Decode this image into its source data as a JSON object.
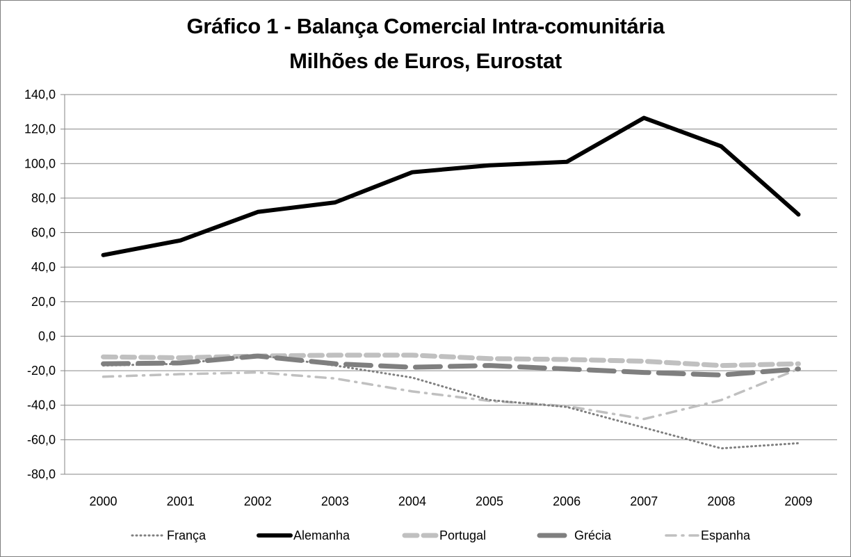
{
  "chart_data": {
    "type": "line",
    "title": "Gráfico 1 - Balança Comercial Intra-comunitária",
    "subtitle": "Milhões de Euros,  Eurostat",
    "xlabel": "",
    "ylabel": "",
    "categories": [
      "2000",
      "2001",
      "2002",
      "2003",
      "2004",
      "2005",
      "2006",
      "2007",
      "2008",
      "2009"
    ],
    "ylim": [
      -80,
      140
    ],
    "yticks": [
      "140,0",
      "120,0",
      "100,0",
      "80,0",
      "60,0",
      "40,0",
      "20,0",
      "0,0",
      "-20,0",
      "-40,0",
      "-60,0",
      "-80,0"
    ],
    "grid": true,
    "legend_position": "bottom",
    "series": [
      {
        "name": "França",
        "values": [
          -17,
          -16,
          -11,
          -17,
          -24,
          -37,
          -41,
          -53,
          -65,
          -62
        ],
        "color": "#7f7f7f",
        "style": "dotted"
      },
      {
        "name": "Alemanha",
        "values": [
          47,
          55.5,
          72,
          77.5,
          95,
          99,
          101,
          126.5,
          110,
          70.5
        ],
        "color": "#000000",
        "style": "solid"
      },
      {
        "name": "Portugal",
        "values": [
          -12,
          -12.5,
          -11.5,
          -11,
          -11,
          -13,
          -13.5,
          -14.5,
          -17,
          -16
        ],
        "color": "#c0c0c0",
        "style": "dashed"
      },
      {
        "name": "Grécia",
        "values": [
          -16,
          -15.5,
          -11.5,
          -16,
          -18,
          -17,
          -19,
          -21,
          -22.5,
          -19
        ],
        "color": "#7f7f7f",
        "style": "longdash"
      },
      {
        "name": "Espanha",
        "values": [
          -23.5,
          -22,
          -21,
          -24.5,
          -32,
          -37.5,
          -40.5,
          -48,
          -37,
          -19
        ],
        "color": "#c0c0c0",
        "style": "dashdot"
      }
    ]
  }
}
